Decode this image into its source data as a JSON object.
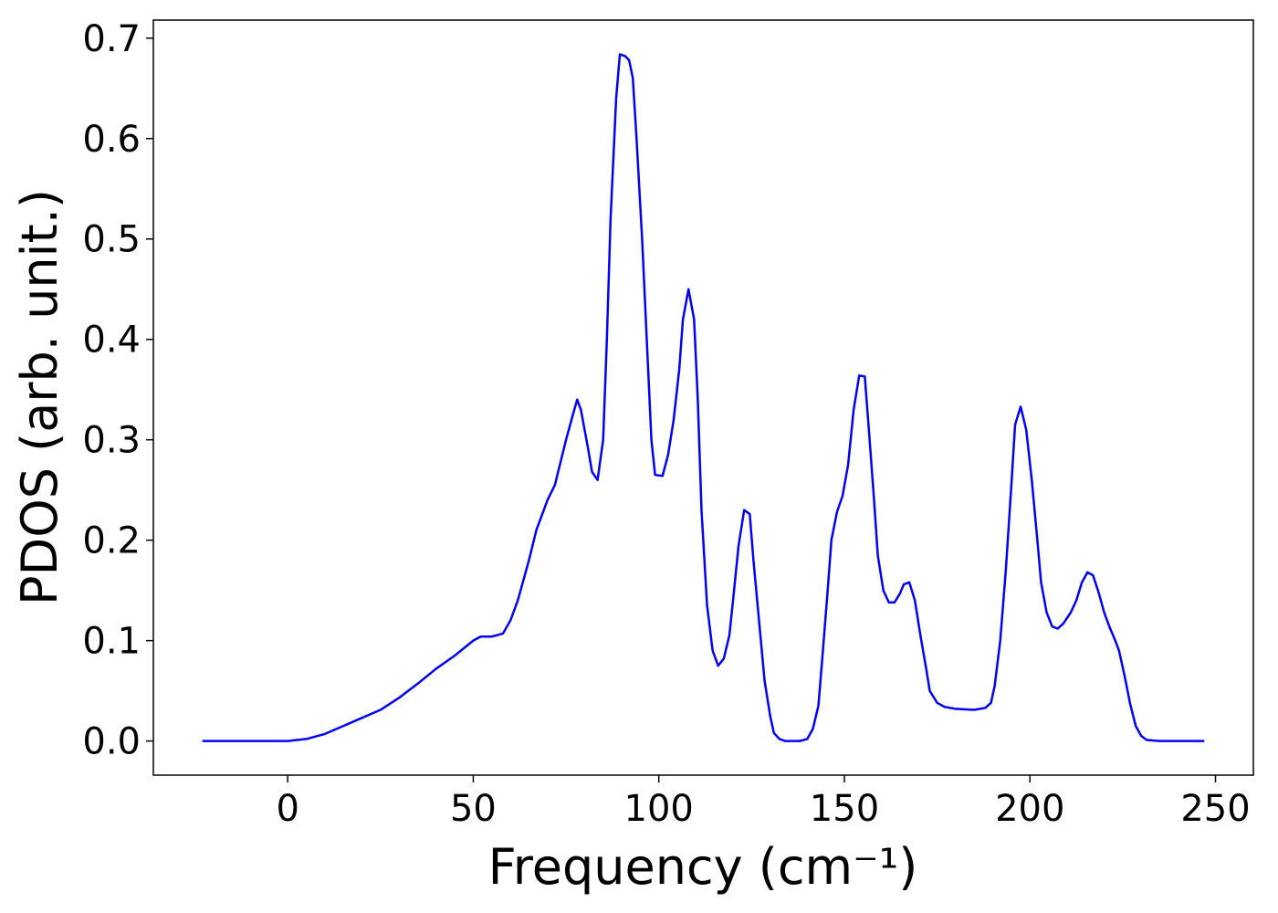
{
  "chart_data": {
    "type": "line",
    "xlabel": "Frequency (cm⁻¹)",
    "ylabel": "PDOS (arb. unit.)",
    "xlim": [
      -36.2,
      260.2
    ],
    "ylim": [
      -0.034,
      0.718
    ],
    "xticks": [
      0,
      50,
      100,
      150,
      200,
      250
    ],
    "yticks": [
      {
        "value": 0,
        "label": "0.0"
      },
      0.1,
      0.2,
      0.3,
      0.4,
      0.5,
      0.6,
      0.7
    ],
    "x": [
      -23,
      0,
      5,
      10,
      15,
      20,
      25,
      30,
      35,
      40,
      45,
      50,
      52,
      55,
      58,
      60,
      62,
      65,
      67,
      70,
      72,
      75,
      77,
      78,
      79,
      81,
      82,
      83.5,
      85,
      86,
      87,
      88.5,
      89.5,
      91,
      92,
      93,
      94,
      95.5,
      97,
      98,
      99,
      101,
      102.5,
      104,
      105.5,
      106.5,
      108,
      109.5,
      110.5,
      111.5,
      113,
      114.5,
      116,
      117.5,
      119,
      120,
      121.5,
      123,
      124.5,
      125.5,
      127,
      128.5,
      130,
      131,
      132.5,
      134,
      138,
      140,
      141.5,
      143,
      144,
      145.5,
      146.5,
      148,
      149.5,
      151,
      152.5,
      154,
      155.5,
      156.5,
      158,
      159,
      160.5,
      162,
      163.5,
      165,
      166,
      167.5,
      169,
      170.5,
      172,
      173,
      175,
      177,
      180,
      185,
      188,
      189.5,
      190.5,
      192,
      193.5,
      195,
      196,
      197.5,
      199,
      200.5,
      202,
      203,
      204.5,
      206,
      207.5,
      209,
      211,
      212.5,
      214,
      215.5,
      217,
      218.5,
      220,
      221.5,
      223,
      224,
      225.5,
      227,
      228.5,
      230,
      231.5,
      235,
      247
    ],
    "series": [
      {
        "color": "#0000ff",
        "values": [
          0,
          0,
          0.002,
          0.007,
          0.015,
          0.023,
          0.031,
          0.043,
          0.057,
          0.072,
          0.085,
          0.1,
          0.104,
          0.104,
          0.107,
          0.12,
          0.14,
          0.18,
          0.21,
          0.24,
          0.255,
          0.3,
          0.327,
          0.34,
          0.33,
          0.29,
          0.268,
          0.26,
          0.3,
          0.4,
          0.52,
          0.64,
          0.684,
          0.682,
          0.678,
          0.66,
          0.6,
          0.5,
          0.38,
          0.3,
          0.265,
          0.264,
          0.285,
          0.32,
          0.37,
          0.42,
          0.45,
          0.42,
          0.34,
          0.23,
          0.135,
          0.09,
          0.075,
          0.082,
          0.105,
          0.14,
          0.195,
          0.23,
          0.226,
          0.18,
          0.12,
          0.06,
          0.025,
          0.008,
          0.002,
          0,
          0,
          0.002,
          0.012,
          0.035,
          0.08,
          0.15,
          0.2,
          0.228,
          0.244,
          0.275,
          0.33,
          0.364,
          0.363,
          0.315,
          0.24,
          0.185,
          0.15,
          0.138,
          0.138,
          0.147,
          0.156,
          0.158,
          0.14,
          0.105,
          0.073,
          0.05,
          0.038,
          0.034,
          0.032,
          0.031,
          0.033,
          0.038,
          0.055,
          0.1,
          0.17,
          0.255,
          0.315,
          0.333,
          0.31,
          0.26,
          0.2,
          0.158,
          0.128,
          0.114,
          0.112,
          0.117,
          0.128,
          0.14,
          0.158,
          0.168,
          0.165,
          0.148,
          0.128,
          0.113,
          0.1,
          0.09,
          0.065,
          0.037,
          0.015,
          0.005,
          0.001,
          0,
          0
        ]
      }
    ]
  }
}
